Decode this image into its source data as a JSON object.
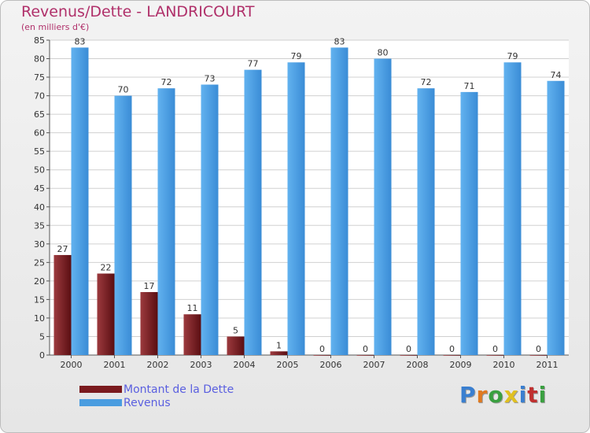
{
  "header": {
    "title": "Revenus/Dette - LANDRICOURT",
    "subtitle": "(en milliers d'€)"
  },
  "colors": {
    "debt": "#7a1a1e",
    "revenue": "#4a9de0",
    "title": "#b0306a",
    "legend_text": "#5a5fe0"
  },
  "chart_data": {
    "type": "bar",
    "categories": [
      "2000",
      "2001",
      "2002",
      "2003",
      "2004",
      "2005",
      "2006",
      "2007",
      "2008",
      "2009",
      "2010",
      "2011"
    ],
    "series": [
      {
        "name": "Montant de la Dette",
        "values": [
          27,
          22,
          17,
          11,
          5,
          1,
          0,
          0,
          0,
          0,
          0,
          0
        ]
      },
      {
        "name": "Revenus",
        "values": [
          83,
          70,
          72,
          73,
          77,
          79,
          83,
          80,
          72,
          71,
          79,
          74
        ]
      }
    ],
    "title": "Revenus/Dette - LANDRICOURT",
    "ylabel": "(en milliers d'€)",
    "ylim": [
      0,
      85
    ],
    "yticks": [
      0,
      5,
      10,
      15,
      20,
      25,
      30,
      35,
      40,
      45,
      50,
      55,
      60,
      65,
      70,
      75,
      80,
      85
    ],
    "grid": true,
    "legend": "bottom-left"
  },
  "legend": [
    {
      "label": "Montant de la Dette",
      "color": "#7a1a1e"
    },
    {
      "label": "Revenus",
      "color": "#4a9de0"
    }
  ],
  "logo": {
    "letters": [
      "P",
      "r",
      "o",
      "x",
      "i",
      "t",
      "i"
    ],
    "colors": [
      "#3a7fd0",
      "#e07a20",
      "#3aa040",
      "#e0c020",
      "#3a7fd0",
      "#c03030",
      "#3aa040"
    ]
  }
}
